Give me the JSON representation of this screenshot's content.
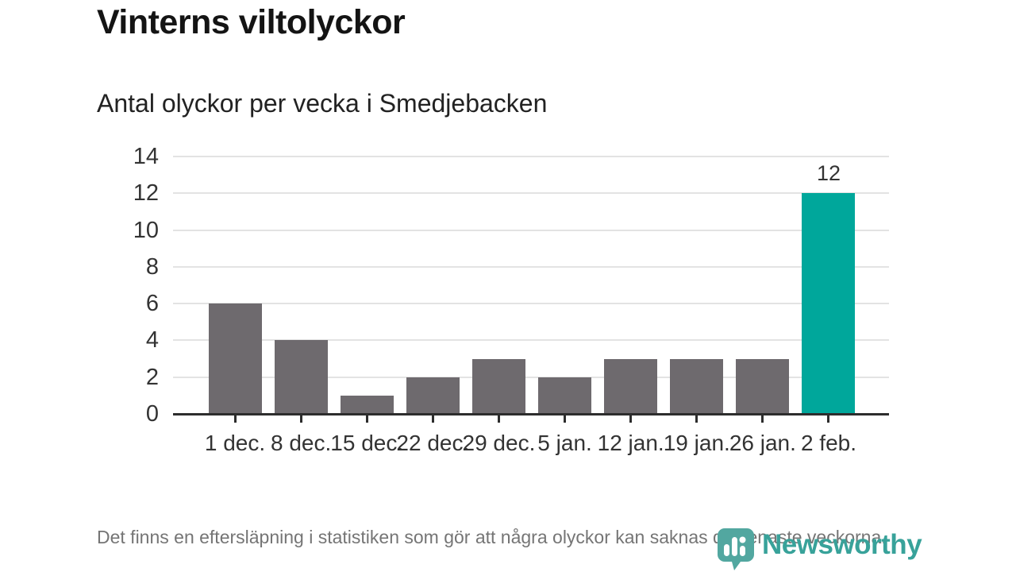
{
  "header": {
    "title": "Vinterns viltolyckor",
    "subtitle": "Antal olyckor per vecka i Smedjebacken"
  },
  "footnote": "Det finns en eftersläpning i statistiken som gör att några olyckor kan saknas de senaste veckorna.",
  "branding": {
    "logo_text": "Newsworthy",
    "logo_icon": "newsworthy-pin-barchart-icon"
  },
  "colors": {
    "bar_default": "#6e6a6e",
    "bar_highlight": "#00a79b",
    "axis": "#2d2d2d",
    "grid": "#e3e3e3",
    "tick_label": "#333333",
    "footnote_text": "#757575",
    "logo_pin": "#52a7a0",
    "logo_text": "#38a29a"
  },
  "chart_data": {
    "type": "bar",
    "title": "Vinterns viltolyckor",
    "subtitle": "Antal olyckor per vecka i Smedjebacken",
    "categories": [
      "1 dec.",
      "8 dec.",
      "15 dec.",
      "22 dec.",
      "29 dec.",
      "5 jan.",
      "12 jan.",
      "19 jan.",
      "26 jan.",
      "2 feb."
    ],
    "values": [
      6,
      4,
      1,
      2,
      3,
      2,
      3,
      3,
      3,
      12
    ],
    "highlighted_index": 9,
    "highlight_label": "12",
    "xlabel": "",
    "ylabel": "",
    "ylim": [
      0,
      14
    ],
    "yticks": [
      0,
      2,
      4,
      6,
      8,
      10,
      12,
      14
    ],
    "grid": true,
    "legend": false
  }
}
